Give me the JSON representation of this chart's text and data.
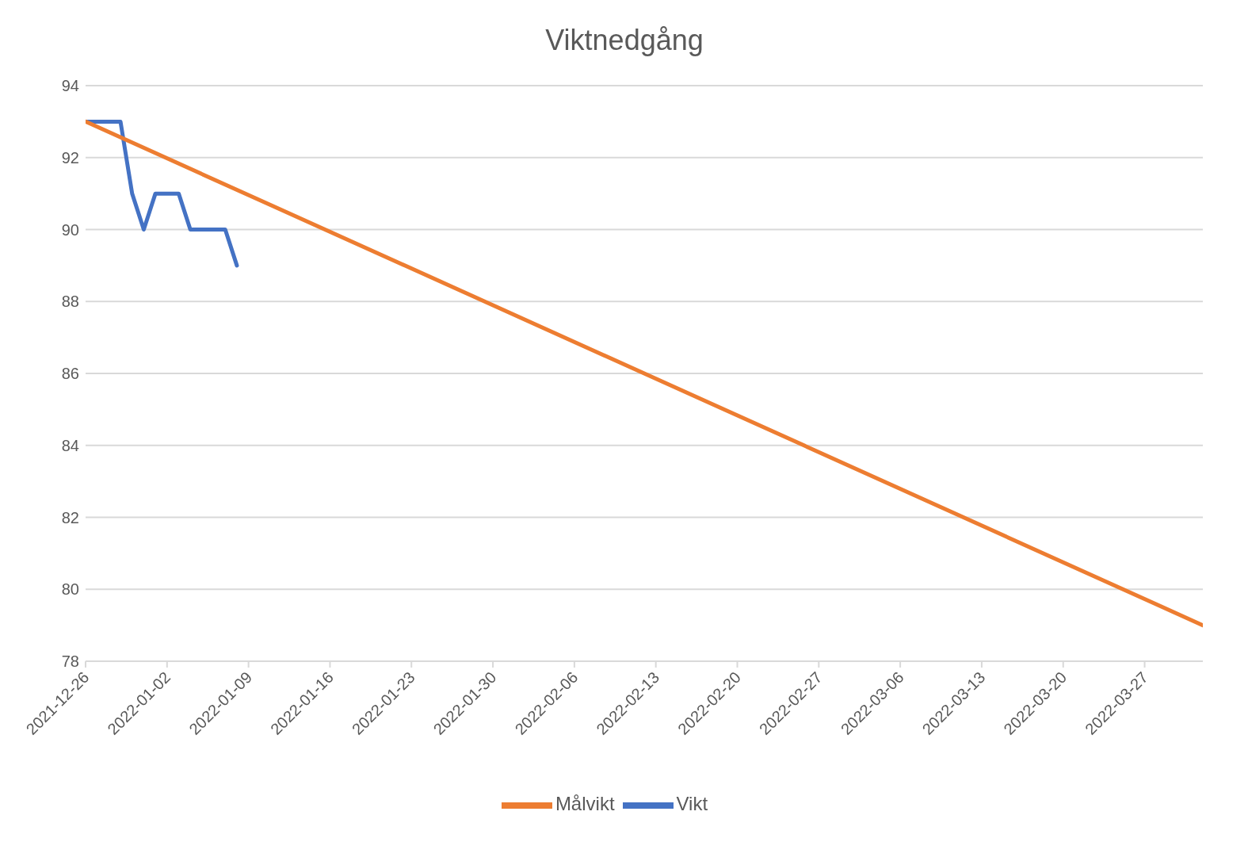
{
  "chart_data": {
    "type": "line",
    "title": "Viktnedgång",
    "xlim": [
      "2021-12-26",
      "2022-04-01"
    ],
    "xticks": [
      "2021-12-26",
      "2022-01-02",
      "2022-01-09",
      "2022-01-16",
      "2022-01-23",
      "2022-01-30",
      "2022-02-06",
      "2022-02-13",
      "2022-02-20",
      "2022-02-27",
      "2022-03-06",
      "2022-03-13",
      "2022-03-20",
      "2022-03-27"
    ],
    "ylim": [
      78,
      94
    ],
    "yticks": [
      78,
      80,
      82,
      84,
      86,
      88,
      90,
      92,
      94
    ],
    "series": [
      {
        "name": "Vikt",
        "color": "#4472c4",
        "x": [
          "2021-12-26",
          "2021-12-27",
          "2021-12-28",
          "2021-12-29",
          "2021-12-30",
          "2021-12-31",
          "2022-01-01",
          "2022-01-02",
          "2022-01-03",
          "2022-01-04",
          "2022-01-05",
          "2022-01-06",
          "2022-01-07",
          "2022-01-08"
        ],
        "values": [
          93,
          93,
          93,
          93,
          91,
          90,
          91,
          91,
          91,
          90,
          90,
          90,
          90,
          89
        ]
      },
      {
        "name": "Målvikt",
        "color": "#ed7d31",
        "x": [
          "2021-12-26",
          "2022-04-01"
        ],
        "values": [
          93,
          79
        ]
      }
    ],
    "grid": "y",
    "legend": "bottom",
    "marker": "none",
    "line_style": "solid"
  }
}
